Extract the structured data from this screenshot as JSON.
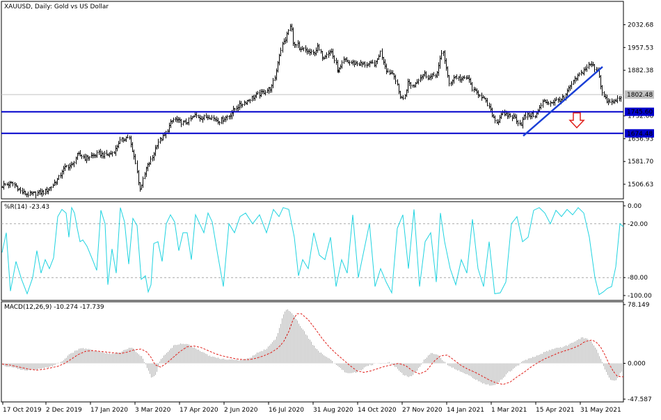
{
  "colors": {
    "background": "#ffffff",
    "frame": "#000000",
    "candles": "#000000",
    "price_line": "#c0c0c0",
    "level_line": "#0000cc",
    "trendline": "#1a3fd6",
    "arrow": "#e0201b",
    "wpr_line": "#1fd3e0",
    "wpr_level": "#a8a8a8",
    "macd_hist": "#b0b0b0",
    "macd_signal": "#e0201b",
    "price_badge_bg": "#c0c0c0",
    "level_badge_bg": "#0000cc"
  },
  "chart_data": [
    {
      "type": "line",
      "title": "XAUUSD, Daily:  Gold vs US Dollar",
      "y_ticks": [
        "2032.68",
        "1957.53",
        "1882.38",
        "1581.70",
        "1506.63"
      ],
      "ylim": [
        1463,
        2105
      ],
      "current_price": "1802.48",
      "horizontal_levels": [
        "1745.60",
        "1674.48"
      ],
      "overlapped_tick_labels": [
        "1732.06",
        "1656.93"
      ],
      "price_path": {
        "x": [
          0,
          6,
          12,
          18,
          24,
          30,
          36,
          42,
          47,
          52,
          57,
          62,
          66,
          70,
          74,
          78,
          82,
          86,
          88,
          92,
          96,
          100,
          104,
          106,
          110,
          114,
          118,
          122,
          126,
          130,
          136,
          142,
          150,
          156,
          160,
          166,
          170,
          180,
          185,
          190,
          195,
          200,
          205,
          210,
          218,
          226,
          236,
          245,
          250,
          258,
          266,
          274,
          280,
          290,
          300,
          315,
          330,
          340,
          345,
          350,
          365,
          380,
          390,
          396,
          400,
          405,
          410,
          416,
          418,
          422,
          428,
          430,
          436,
          444,
          450,
          456,
          464,
          470,
          476,
          482,
          486,
          490,
          494,
          500,
          510,
          520,
          530,
          540,
          546,
          556,
          566,
          574,
          580,
          586,
          594,
          602,
          610,
          616,
          622,
          628,
          636,
          645,
          653,
          664,
          672,
          680,
          690,
          700,
          706,
          712,
          716,
          720,
          724,
          730,
          740,
          748,
          753,
          760,
          770,
          780,
          790,
          800,
          810,
          820,
          830,
          838,
          845,
          850,
          855,
          860,
          865,
          870,
          876,
          884,
          890,
          893
        ],
        "close": [
          1497,
          1505,
          1507,
          1509,
          1498,
          1482,
          1476,
          1473,
          1475,
          1477,
          1479,
          1480,
          1486,
          1492,
          1500,
          1512,
          1521,
          1533,
          1551,
          1557,
          1567,
          1567,
          1569,
          1582,
          1601,
          1603,
          1600,
          1592,
          1596,
          1600,
          1602,
          1608,
          1602,
          1605,
          1609,
          1622,
          1645,
          1660,
          1663,
          1613,
          1576,
          1490,
          1516,
          1560,
          1591,
          1645,
          1666,
          1708,
          1722,
          1712,
          1709,
          1722,
          1733,
          1725,
          1731,
          1715,
          1735,
          1762,
          1768,
          1776,
          1796,
          1812,
          1826,
          1870,
          1925,
          1964,
          1985,
          2025,
          2028,
          1962,
          1966,
          1945,
          1952,
          1942,
          1937,
          1958,
          1924,
          1942,
          1943,
          1906,
          1880,
          1893,
          1917,
          1909,
          1906,
          1903,
          1902,
          1905,
          1945,
          1880,
          1870,
          1800,
          1786,
          1842,
          1830,
          1858,
          1870,
          1858,
          1863,
          1874,
          1953,
          1836,
          1862,
          1852,
          1858,
          1814,
          1803,
          1770,
          1742,
          1715,
          1715,
          1742,
          1732,
          1735,
          1725,
          1703,
          1729,
          1735,
          1734,
          1779,
          1776,
          1783,
          1790,
          1832,
          1862,
          1880,
          1898,
          1902,
          1888,
          1880,
          1808,
          1785,
          1775,
          1780,
          1793,
          1802
        ]
      }
    },
    {
      "type": "line",
      "title": "%R(14) -23.43",
      "y_ticks": [
        "0.00",
        "-20.00",
        "-80.00",
        "-100.00"
      ],
      "ylim": [
        -100,
        0
      ],
      "levels": [
        -20,
        -80
      ],
      "series": [
        {
          "x": [
            0,
            6,
            12,
            20,
            28,
            36,
            44,
            50,
            56,
            62,
            68,
            74,
            80,
            86,
            92,
            96,
            100,
            104,
            108,
            112,
            116,
            122,
            130,
            136,
            142,
            148,
            152,
            158,
            164,
            170,
            176,
            182,
            188,
            194,
            200,
            206,
            210,
            214,
            218,
            224,
            230,
            236,
            242,
            248,
            254,
            260,
            266,
            272,
            278,
            284,
            290,
            296,
            302,
            310,
            318,
            326,
            334,
            342,
            350,
            360,
            370,
            380,
            390,
            398,
            404,
            412,
            420,
            426,
            432,
            440,
            448,
            456,
            464,
            472,
            480,
            488,
            496,
            504,
            512,
            520,
            528,
            536,
            544,
            552,
            560,
            568,
            576,
            584,
            592,
            600,
            608,
            616,
            624,
            630,
            636,
            644,
            652,
            660,
            668,
            676,
            684,
            692,
            700,
            708,
            716,
            724,
            732,
            740,
            748,
            756,
            764,
            772,
            780,
            788,
            796,
            804,
            812,
            820,
            828,
            836,
            844,
            852,
            858,
            864,
            870,
            876,
            882,
            888,
            893
          ],
          "values": [
            -52,
            -30,
            -95,
            -62,
            -82,
            -98,
            -80,
            -50,
            -75,
            -60,
            -70,
            -58,
            -12,
            -4,
            -8,
            -35,
            -2,
            -8,
            -25,
            -40,
            -38,
            -45,
            -60,
            -72,
            -5,
            -20,
            -88,
            -48,
            -75,
            -2,
            -18,
            -65,
            -14,
            -22,
            -82,
            -78,
            -96,
            -88,
            -42,
            -40,
            -62,
            -20,
            -10,
            -18,
            -50,
            -30,
            -30,
            -60,
            -10,
            -20,
            -30,
            -8,
            -18,
            -55,
            -90,
            -20,
            -30,
            -12,
            -8,
            -20,
            -10,
            -30,
            -4,
            -12,
            -2,
            -4,
            -35,
            -78,
            -60,
            -70,
            -30,
            -55,
            -60,
            -35,
            -90,
            -60,
            -75,
            -10,
            -80,
            -50,
            -20,
            -90,
            -70,
            -85,
            -97,
            -25,
            -10,
            -70,
            -4,
            -90,
            -40,
            -30,
            -85,
            -8,
            -40,
            -70,
            -88,
            -60,
            -75,
            -15,
            -70,
            -90,
            -40,
            -98,
            -97,
            -85,
            -20,
            -12,
            -40,
            -35,
            -5,
            -2,
            -8,
            -20,
            -5,
            -12,
            -4,
            -10,
            -2,
            -8,
            -35,
            -80,
            -99,
            -96,
            -92,
            -90,
            -68,
            -20,
            -23.43
          ]
        }
      ]
    },
    {
      "type": "bar",
      "title": "MACD(12,26,9) -10.274 -17.739",
      "y_ticks": [
        "78.149",
        "0.000",
        "-47.587"
      ],
      "ylim": [
        -47.587,
        78.149
      ],
      "series": [
        {
          "name": "",
          "x": [
            0,
            10,
            20,
            30,
            40,
            50,
            60,
            70,
            80,
            90,
            100,
            110,
            120,
            130,
            140,
            150,
            160,
            170,
            180,
            188,
            196,
            204,
            212,
            218,
            224,
            230,
            240,
            250,
            260,
            270,
            280,
            290,
            300,
            310,
            320,
            330,
            340,
            350,
            360,
            370,
            380,
            390,
            398,
            405,
            410,
            416,
            420,
            430,
            440,
            450,
            460,
            470,
            480,
            490,
            500,
            510,
            520,
            530,
            540,
            550,
            560,
            570,
            580,
            590,
            600,
            610,
            620,
            630,
            640,
            650,
            660,
            670,
            680,
            690,
            700,
            710,
            720,
            730,
            740,
            750,
            760,
            770,
            780,
            790,
            800,
            810,
            820,
            830,
            836,
            842,
            850,
            856,
            862,
            868,
            874,
            880,
            886,
            893
          ],
          "values": [
            -2,
            -4,
            -6,
            -8,
            -9,
            -8,
            -7,
            -5,
            -2,
            4,
            12,
            18,
            20,
            18,
            16,
            14,
            13,
            14,
            18,
            22,
            15,
            8,
            -8,
            -20,
            -15,
            5,
            15,
            24,
            26,
            25,
            20,
            15,
            10,
            8,
            6,
            5,
            4,
            5,
            8,
            14,
            18,
            26,
            36,
            60,
            72,
            70,
            66,
            52,
            38,
            24,
            14,
            8,
            0,
            -8,
            -14,
            -12,
            -8,
            -2,
            -1,
            0,
            1,
            -6,
            -16,
            -18,
            -8,
            6,
            14,
            10,
            0,
            -6,
            -10,
            -15,
            -20,
            -25,
            -28,
            -30,
            -22,
            -12,
            -6,
            2,
            6,
            10,
            14,
            18,
            20,
            22,
            26,
            32,
            34,
            34,
            28,
            20,
            8,
            -6,
            -18,
            -24,
            -22,
            -10.274
          ]
        },
        {
          "name": "",
          "x": [
            0,
            10,
            20,
            30,
            40,
            50,
            60,
            70,
            80,
            90,
            100,
            110,
            120,
            130,
            140,
            150,
            160,
            170,
            180,
            190,
            200,
            208,
            214,
            220,
            228,
            236,
            246,
            256,
            266,
            276,
            286,
            296,
            306,
            316,
            326,
            336,
            346,
            356,
            366,
            376,
            386,
            396,
            404,
            412,
            418,
            424,
            430,
            440,
            450,
            460,
            470,
            480,
            490,
            500,
            510,
            520,
            530,
            540,
            550,
            560,
            570,
            580,
            590,
            600,
            610,
            620,
            630,
            640,
            650,
            660,
            670,
            680,
            690,
            700,
            710,
            720,
            730,
            740,
            750,
            760,
            770,
            780,
            790,
            800,
            810,
            820,
            830,
            836,
            842,
            848,
            854,
            860,
            866,
            872,
            878,
            884,
            890,
            893
          ],
          "values": [
            -1,
            -2,
            -4,
            -6,
            -8,
            -9,
            -8,
            -6,
            -4,
            0,
            6,
            12,
            16,
            17,
            16,
            15,
            14,
            13,
            15,
            18,
            19,
            15,
            8,
            -2,
            -5,
            0,
            8,
            16,
            22,
            23,
            21,
            17,
            13,
            10,
            8,
            6,
            5,
            5,
            7,
            10,
            14,
            20,
            28,
            42,
            58,
            66,
            66,
            58,
            46,
            33,
            22,
            13,
            5,
            -3,
            -10,
            -12,
            -10,
            -7,
            -4,
            -2,
            0,
            -3,
            -10,
            -14,
            -10,
            2,
            10,
            11,
            4,
            -3,
            -8,
            -12,
            -17,
            -22,
            -26,
            -28,
            -25,
            -18,
            -12,
            -5,
            1,
            6,
            10,
            14,
            17,
            20,
            24,
            28,
            30,
            31,
            28,
            22,
            12,
            0,
            -10,
            -17,
            -18,
            -17.739
          ]
        }
      ]
    },
    {
      "type": "axis",
      "x_ticks": [
        "17 Oct 2019",
        "2 Dec 2019",
        "17 Jan 2020",
        "3 Mar 2020",
        "17 Apr 2020",
        "2 Jun 2020",
        "16 Jul 2020",
        "31 Aug 2020",
        "14 Oct 2020",
        "27 Nov 2020",
        "14 Jan 2021",
        "1 Mar 2021",
        "15 Apr 2021",
        "31 May 2021"
      ]
    }
  ]
}
